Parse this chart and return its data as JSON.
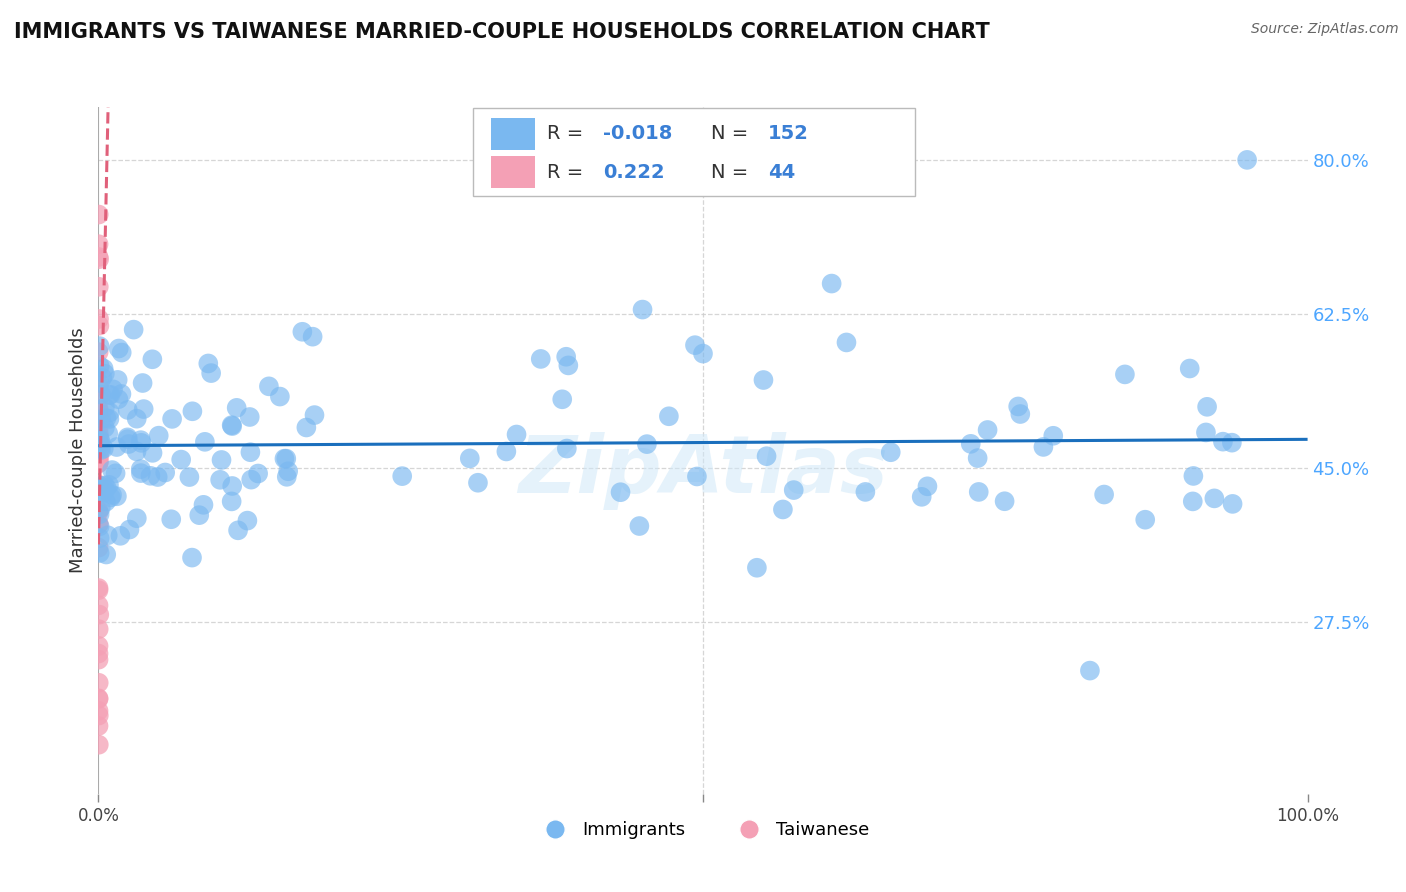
{
  "title": "IMMIGRANTS VS TAIWANESE MARRIED-COUPLE HOUSEHOLDS CORRELATION CHART",
  "source_text": "Source: ZipAtlas.com",
  "ylabel": "Married-couple Households",
  "xlim": [
    0.0,
    1.0
  ],
  "ylim": [
    0.08,
    0.86
  ],
  "yticks": [
    0.275,
    0.45,
    0.625,
    0.8
  ],
  "ytick_labels": [
    "27.5%",
    "45.0%",
    "62.5%",
    "80.0%"
  ],
  "immigrants_color": "#7ab8f0",
  "taiwanese_color": "#f4a0b5",
  "regression_blue_color": "#1a6fbd",
  "regression_pink_color": "#e0607a",
  "R_immigrants": -0.018,
  "N_immigrants": 152,
  "R_taiwanese": 0.222,
  "N_taiwanese": 44,
  "legend_immigrants": "Immigrants",
  "legend_taiwanese": "Taiwanese",
  "watermark": "ZipAtlas",
  "background_color": "#ffffff",
  "grid_color": "#cccccc",
  "title_fontsize": 15,
  "label_fontsize": 13,
  "tick_fontsize": 12,
  "legend_R_color": "#3a7fd5",
  "legend_N_color": "#3a7fd5",
  "legend_label_color": "#333333"
}
